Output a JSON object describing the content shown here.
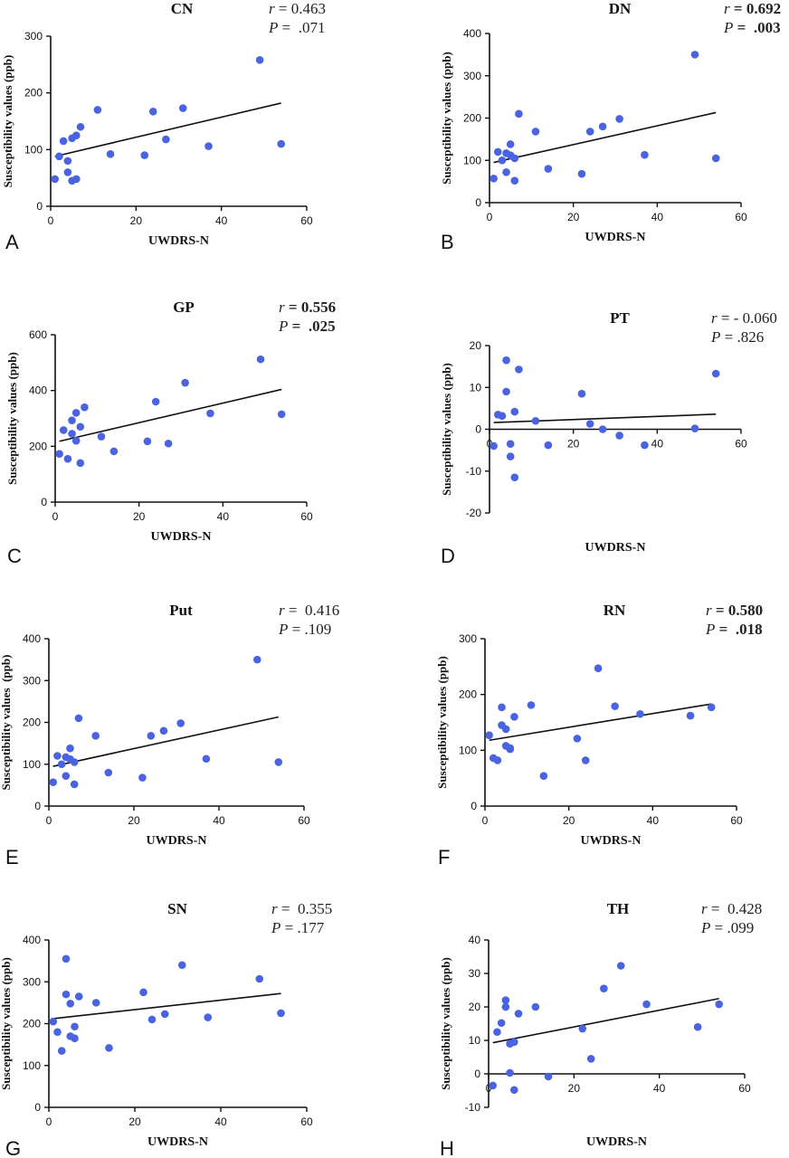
{
  "chart_data": [
    {
      "type": "scatter",
      "panel_label": "A",
      "title": "CN",
      "stats": {
        "r_label": "r",
        "r_sep": " = ",
        "r_value": "0.463",
        "p_label": "P",
        "p_sep": " =  ",
        "p_value": ".071",
        "bold_values": false
      },
      "xlabel": "UWDRS-N",
      "ylabel": "Susceptibility values (ppb)",
      "xlim": [
        0,
        60
      ],
      "ylim": [
        0,
        300
      ],
      "xticks": [
        0,
        20,
        40,
        60
      ],
      "yticks": [
        0,
        100,
        200,
        300
      ],
      "fit": {
        "x": [
          1,
          54
        ],
        "y": [
          88,
          182
        ]
      },
      "points": [
        [
          1,
          48
        ],
        [
          2,
          88
        ],
        [
          3,
          115
        ],
        [
          4,
          80
        ],
        [
          4,
          60
        ],
        [
          5,
          120
        ],
        [
          5,
          45
        ],
        [
          6,
          125
        ],
        [
          6,
          48
        ],
        [
          7,
          140
        ],
        [
          11,
          170
        ],
        [
          14,
          92
        ],
        [
          22,
          90
        ],
        [
          24,
          167
        ],
        [
          27,
          118
        ],
        [
          31,
          173
        ],
        [
          37,
          106
        ],
        [
          49,
          258
        ],
        [
          54,
          110
        ]
      ]
    },
    {
      "type": "scatter",
      "panel_label": "B",
      "title": "DN",
      "stats": {
        "r_label": "r",
        "r_sep": " = ",
        "r_value": "0.692",
        "p_label": "P",
        "p_sep": " =  ",
        "p_value": ".003",
        "bold_values": true
      },
      "xlabel": "UWDRS-N",
      "ylabel": "Susceptibility values (ppb)",
      "xlim": [
        0,
        60
      ],
      "ylim": [
        0,
        400
      ],
      "xticks": [
        0,
        20,
        40,
        60
      ],
      "yticks": [
        0,
        100,
        200,
        300,
        400
      ],
      "fit": {
        "x": [
          1,
          54
        ],
        "y": [
          95,
          213
        ]
      },
      "points": [
        [
          1,
          57
        ],
        [
          2,
          120
        ],
        [
          3,
          100
        ],
        [
          4,
          117
        ],
        [
          4,
          72
        ],
        [
          5,
          112
        ],
        [
          5,
          138
        ],
        [
          6,
          105
        ],
        [
          6,
          52
        ],
        [
          7,
          210
        ],
        [
          11,
          168
        ],
        [
          14,
          80
        ],
        [
          22,
          68
        ],
        [
          24,
          168
        ],
        [
          27,
          180
        ],
        [
          31,
          198
        ],
        [
          37,
          113
        ],
        [
          49,
          350
        ],
        [
          54,
          105
        ]
      ]
    },
    {
      "type": "scatter",
      "panel_label": "C",
      "title": "GP",
      "stats": {
        "r_label": "r",
        "r_sep": " = ",
        "r_value": "0.556",
        "p_label": "P",
        "p_sep": " =  ",
        "p_value": ".025",
        "bold_values": true
      },
      "xlabel": "UWDRS-N",
      "ylabel": "Susceptibility values (ppb)",
      "xlim": [
        0,
        60
      ],
      "ylim": [
        0,
        600
      ],
      "xticks": [
        0,
        20,
        40,
        60
      ],
      "yticks": [
        0,
        200,
        400,
        600
      ],
      "fit": {
        "x": [
          1,
          54
        ],
        "y": [
          218,
          404
        ]
      },
      "points": [
        [
          1,
          173
        ],
        [
          2,
          258
        ],
        [
          3,
          155
        ],
        [
          4,
          293
        ],
        [
          4,
          245
        ],
        [
          5,
          320
        ],
        [
          5,
          220
        ],
        [
          6,
          270
        ],
        [
          6,
          140
        ],
        [
          7,
          340
        ],
        [
          11,
          235
        ],
        [
          14,
          182
        ],
        [
          22,
          218
        ],
        [
          24,
          360
        ],
        [
          27,
          210
        ],
        [
          31,
          428
        ],
        [
          37,
          318
        ],
        [
          49,
          512
        ],
        [
          54,
          315
        ]
      ]
    },
    {
      "type": "scatter",
      "panel_label": "D",
      "title": "PT",
      "stats": {
        "r_label": "r",
        "r_sep": " = ",
        "r_value": "- 0.060",
        "p_label": "P",
        "p_sep": " = ",
        "p_value": ".826",
        "bold_values": false
      },
      "xlabel": "UWDRS-N",
      "ylabel": "Susceptibility values (ppb)",
      "xlim": [
        0,
        60
      ],
      "ylim": [
        -20,
        20
      ],
      "xticks": [
        0,
        20,
        40,
        60
      ],
      "yticks": [
        -20,
        -10,
        0,
        10,
        20
      ],
      "fit": {
        "x": [
          1,
          54
        ],
        "y": [
          1.6,
          3.6
        ]
      },
      "points": [
        [
          1,
          -4
        ],
        [
          2,
          3.5
        ],
        [
          3,
          3.2
        ],
        [
          4,
          16.5
        ],
        [
          4,
          9
        ],
        [
          5,
          -3.5
        ],
        [
          5,
          -6.5
        ],
        [
          6,
          4.2
        ],
        [
          6,
          -11.5
        ],
        [
          7,
          14.3
        ],
        [
          11,
          2
        ],
        [
          14,
          -3.8
        ],
        [
          22,
          8.5
        ],
        [
          24,
          1.3
        ],
        [
          27,
          0
        ],
        [
          31,
          -1.5
        ],
        [
          37,
          -3.8
        ],
        [
          49,
          0.2
        ],
        [
          54,
          13.3
        ]
      ]
    },
    {
      "type": "scatter",
      "panel_label": "E",
      "title": "Put",
      "stats": {
        "r_label": "r",
        "r_sep": " = ",
        "r_value": " 0.416",
        "p_label": "P",
        "p_sep": " = ",
        "p_value": ".109",
        "bold_values": false
      },
      "xlabel": "UWDRS-N",
      "ylabel": "Susceptibility values  (ppb)",
      "xlim": [
        0,
        60
      ],
      "ylim": [
        0,
        400
      ],
      "xticks": [
        0,
        20,
        40,
        60
      ],
      "yticks": [
        0,
        100,
        200,
        300,
        400
      ],
      "fit": {
        "x": [
          1,
          54
        ],
        "y": [
          95,
          213
        ]
      },
      "points": [
        [
          1,
          57
        ],
        [
          2,
          120
        ],
        [
          3,
          100
        ],
        [
          4,
          117
        ],
        [
          4,
          72
        ],
        [
          5,
          112
        ],
        [
          5,
          138
        ],
        [
          6,
          105
        ],
        [
          6,
          52
        ],
        [
          7,
          210
        ],
        [
          11,
          168
        ],
        [
          14,
          80
        ],
        [
          22,
          68
        ],
        [
          24,
          168
        ],
        [
          27,
          180
        ],
        [
          31,
          198
        ],
        [
          37,
          113
        ],
        [
          49,
          350
        ],
        [
          54,
          105
        ]
      ]
    },
    {
      "type": "scatter",
      "panel_label": "F",
      "title": "RN",
      "stats": {
        "r_label": "r",
        "r_sep": " = ",
        "r_value": "0.580",
        "p_label": "P",
        "p_sep": " =  ",
        "p_value": ".018",
        "bold_values": true
      },
      "xlabel": "UWDRS-N",
      "ylabel": "Susceptibility values (ppb)",
      "xlim": [
        0,
        60
      ],
      "ylim": [
        0,
        300
      ],
      "xticks": [
        0,
        20,
        40,
        60
      ],
      "yticks": [
        0,
        100,
        200,
        300
      ],
      "fit": {
        "x": [
          1,
          54
        ],
        "y": [
          118,
          183
        ]
      },
      "points": [
        [
          1,
          127
        ],
        [
          2,
          86
        ],
        [
          3,
          82
        ],
        [
          4,
          177
        ],
        [
          4,
          145
        ],
        [
          5,
          138
        ],
        [
          5,
          108
        ],
        [
          6,
          102
        ],
        [
          6,
          104
        ],
        [
          7,
          160
        ],
        [
          11,
          181
        ],
        [
          14,
          54
        ],
        [
          22,
          121
        ],
        [
          24,
          82
        ],
        [
          27,
          247
        ],
        [
          31,
          179
        ],
        [
          37,
          165
        ],
        [
          49,
          162
        ],
        [
          54,
          177
        ]
      ]
    },
    {
      "type": "scatter",
      "panel_label": "G",
      "title": "SN",
      "stats": {
        "r_label": "r",
        "r_sep": " = ",
        "r_value": " 0.355",
        "p_label": "P",
        "p_sep": " = ",
        "p_value": ".177",
        "bold_values": false
      },
      "xlabel": "UWDRS-N",
      "ylabel": "Susceptibility values (ppb)",
      "xlim": [
        0,
        60
      ],
      "ylim": [
        0,
        400
      ],
      "xticks": [
        0,
        20,
        40,
        60
      ],
      "yticks": [
        0,
        100,
        200,
        300,
        400
      ],
      "fit": {
        "x": [
          1,
          54
        ],
        "y": [
          212,
          272
        ]
      },
      "points": [
        [
          1,
          205
        ],
        [
          2,
          180
        ],
        [
          3,
          135
        ],
        [
          4,
          355
        ],
        [
          4,
          270
        ],
        [
          5,
          248
        ],
        [
          5,
          170
        ],
        [
          6,
          193
        ],
        [
          6,
          165
        ],
        [
          7,
          265
        ],
        [
          11,
          250
        ],
        [
          14,
          142
        ],
        [
          22,
          275
        ],
        [
          24,
          210
        ],
        [
          27,
          223
        ],
        [
          31,
          340
        ],
        [
          37,
          215
        ],
        [
          49,
          307
        ],
        [
          54,
          225
        ]
      ]
    },
    {
      "type": "scatter",
      "panel_label": "H",
      "title": "TH",
      "stats": {
        "r_label": "r",
        "r_sep": " = ",
        "r_value": " 0.428",
        "p_label": "P",
        "p_sep": " = ",
        "p_value": ".099",
        "bold_values": false
      },
      "xlabel": "UWDRS-N",
      "ylabel": "Susceptibility values (ppb)",
      "xlim": [
        0,
        60
      ],
      "ylim": [
        -10,
        40
      ],
      "xticks": [
        0,
        20,
        40,
        60
      ],
      "yticks": [
        -10,
        0,
        10,
        20,
        30,
        40
      ],
      "fit": {
        "x": [
          1,
          54
        ],
        "y": [
          9.3,
          22.5
        ]
      },
      "points": [
        [
          1,
          -3.5
        ],
        [
          2,
          12.5
        ],
        [
          3,
          15.2
        ],
        [
          4,
          22
        ],
        [
          4,
          20
        ],
        [
          5,
          9
        ],
        [
          5,
          0.3
        ],
        [
          6,
          9.5
        ],
        [
          6,
          -4.8
        ],
        [
          7,
          18
        ],
        [
          11,
          20
        ],
        [
          14,
          -0.8
        ],
        [
          22,
          13.5
        ],
        [
          24,
          4.5
        ],
        [
          27,
          25.5
        ],
        [
          31,
          32.3
        ],
        [
          37,
          20.8
        ],
        [
          49,
          14
        ],
        [
          54,
          20.8
        ]
      ]
    }
  ]
}
